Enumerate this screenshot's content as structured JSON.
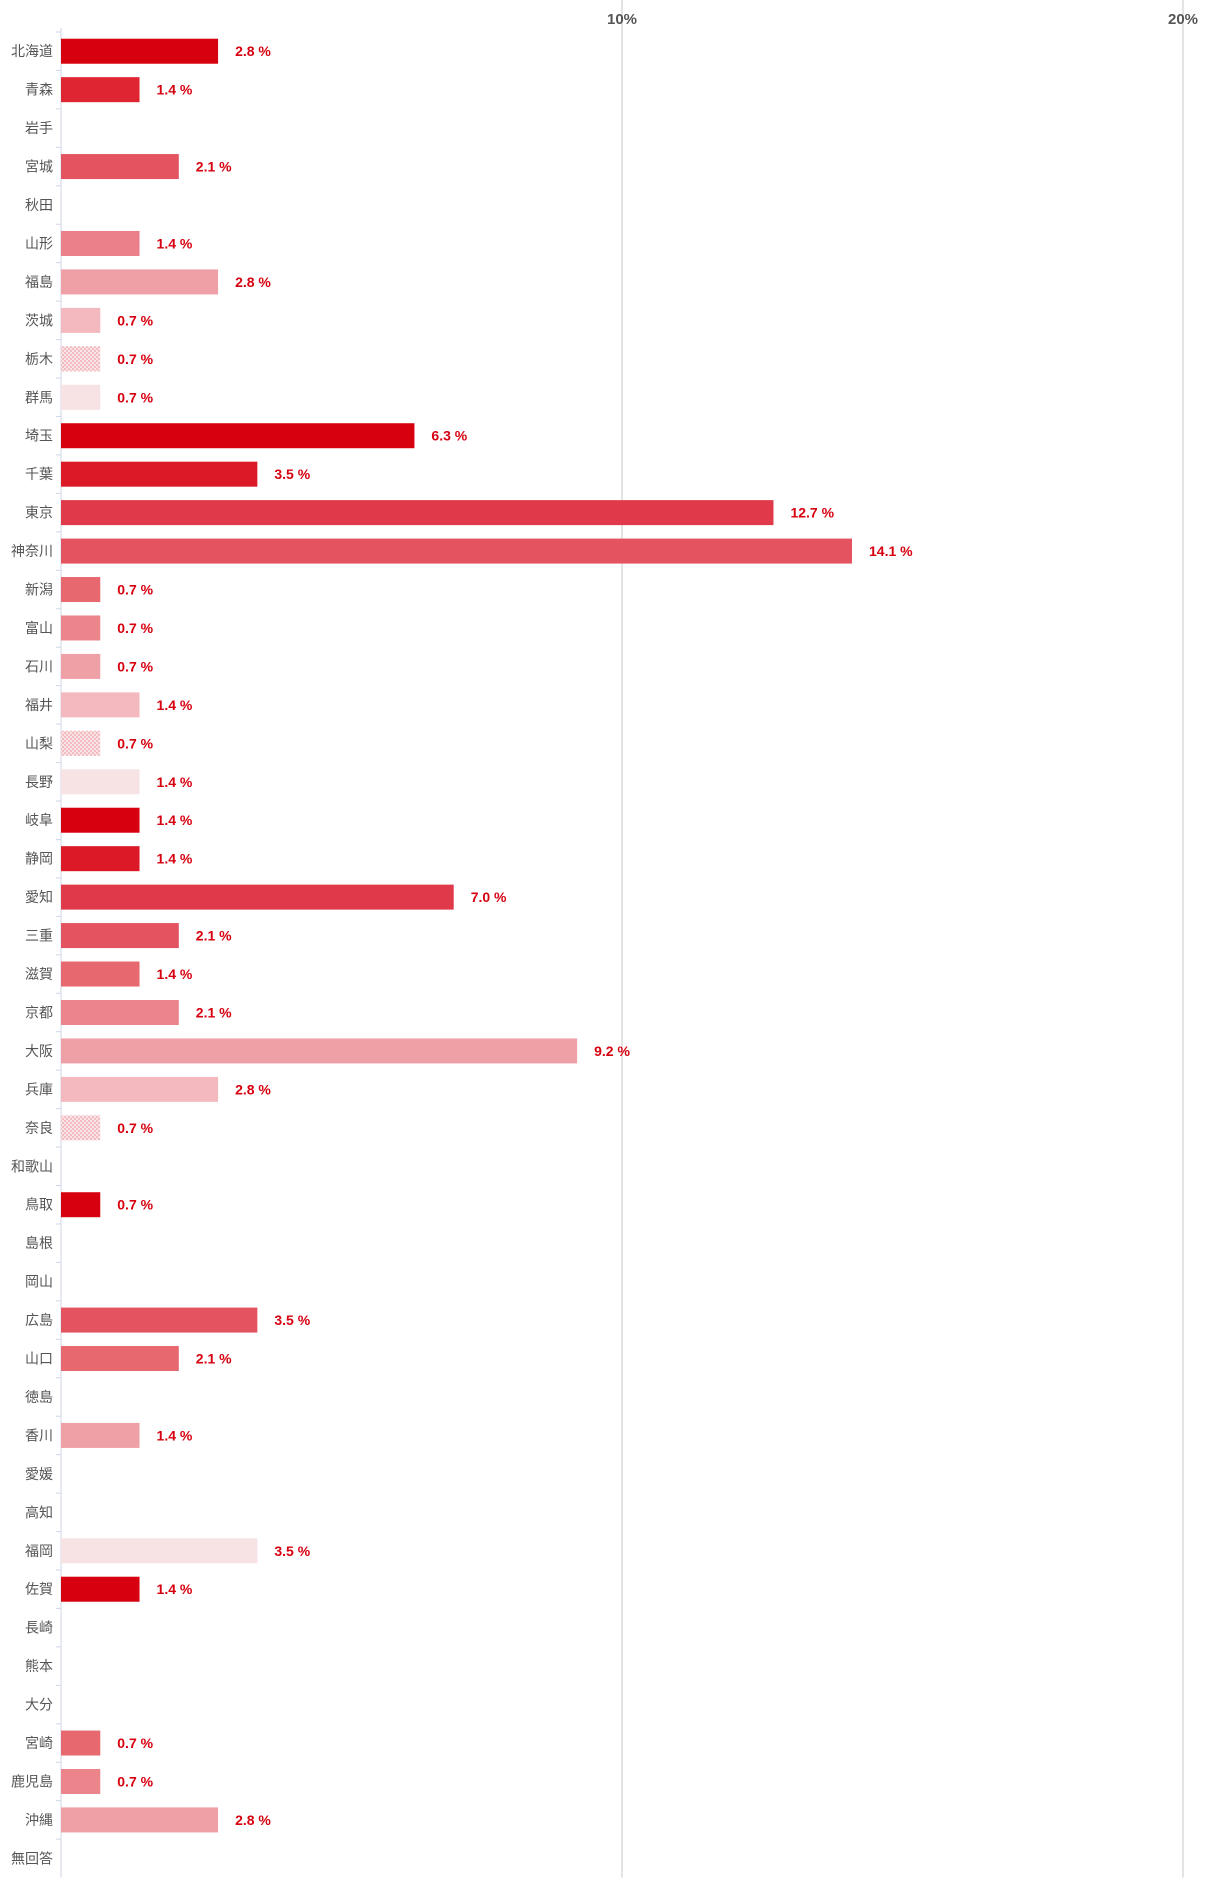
{
  "chart_data": {
    "type": "bar",
    "orientation": "horizontal",
    "xlim": [
      0,
      20
    ],
    "ticks": [
      {
        "value": 10,
        "label": "10%"
      },
      {
        "value": 20,
        "label": "20%"
      }
    ],
    "grid": true,
    "value_label_color": "#d7000f",
    "value_suffix": " %",
    "bars": [
      {
        "label": "北海道",
        "value": 2.8,
        "color": "#d7000f"
      },
      {
        "label": "青森",
        "value": 1.4,
        "color": "#df2532"
      },
      {
        "label": "岩手",
        "value": null
      },
      {
        "label": "宮城",
        "value": 2.1,
        "color": "#e45460"
      },
      {
        "label": "秋田",
        "value": null
      },
      {
        "label": "山形",
        "value": 1.4,
        "color": "#ec808a"
      },
      {
        "label": "福島",
        "value": 2.8,
        "color": "#efa0a6"
      },
      {
        "label": "茨城",
        "value": 0.7,
        "color": "#f4b9be"
      },
      {
        "label": "栃木",
        "value": 0.7,
        "color": "#f6c9cc",
        "pattern": "dots"
      },
      {
        "label": "群馬",
        "value": 0.7,
        "color": "#f7e2e4"
      },
      {
        "label": "埼玉",
        "value": 6.3,
        "color": "#d7000f"
      },
      {
        "label": "千葉",
        "value": 3.5,
        "color": "#dc1a27"
      },
      {
        "label": "東京",
        "value": 12.7,
        "color": "#e0394a"
      },
      {
        "label": "神奈川",
        "value": 14.1,
        "color": "#e45460"
      },
      {
        "label": "新潟",
        "value": 0.7,
        "color": "#e8686f"
      },
      {
        "label": "富山",
        "value": 0.7,
        "color": "#ec848c"
      },
      {
        "label": "石川",
        "value": 0.7,
        "color": "#efa0a6"
      },
      {
        "label": "福井",
        "value": 1.4,
        "color": "#f4b9be"
      },
      {
        "label": "山梨",
        "value": 0.7,
        "color": "#f6c9cc",
        "pattern": "dots"
      },
      {
        "label": "長野",
        "value": 1.4,
        "color": "#f7e2e4"
      },
      {
        "label": "岐阜",
        "value": 1.4,
        "color": "#d7000f"
      },
      {
        "label": "静岡",
        "value": 1.4,
        "color": "#dc1a27"
      },
      {
        "label": "愛知",
        "value": 7.0,
        "color": "#e0394a"
      },
      {
        "label": "三重",
        "value": 2.1,
        "color": "#e45460"
      },
      {
        "label": "滋賀",
        "value": 1.4,
        "color": "#e8686f"
      },
      {
        "label": "京都",
        "value": 2.1,
        "color": "#ec848c"
      },
      {
        "label": "大阪",
        "value": 9.2,
        "color": "#efa0a6"
      },
      {
        "label": "兵庫",
        "value": 2.8,
        "color": "#f4b9be"
      },
      {
        "label": "奈良",
        "value": 0.7,
        "color": "#f6c9cc",
        "pattern": "dots"
      },
      {
        "label": "和歌山",
        "value": null
      },
      {
        "label": "鳥取",
        "value": 0.7,
        "color": "#d7000f"
      },
      {
        "label": "島根",
        "value": null
      },
      {
        "label": "岡山",
        "value": null
      },
      {
        "label": "広島",
        "value": 3.5,
        "color": "#e45460"
      },
      {
        "label": "山口",
        "value": 2.1,
        "color": "#e8686f"
      },
      {
        "label": "徳島",
        "value": null
      },
      {
        "label": "香川",
        "value": 1.4,
        "color": "#efa0a6"
      },
      {
        "label": "愛媛",
        "value": null
      },
      {
        "label": "高知",
        "value": null
      },
      {
        "label": "福岡",
        "value": 3.5,
        "color": "#f7e2e4"
      },
      {
        "label": "佐賀",
        "value": 1.4,
        "color": "#d7000f"
      },
      {
        "label": "長崎",
        "value": null
      },
      {
        "label": "熊本",
        "value": null
      },
      {
        "label": "大分",
        "value": null
      },
      {
        "label": "宮崎",
        "value": 0.7,
        "color": "#e8686f"
      },
      {
        "label": "鹿児島",
        "value": 0.7,
        "color": "#ec848c"
      },
      {
        "label": "沖縄",
        "value": 2.8,
        "color": "#efa0a6"
      },
      {
        "label": "無回答",
        "value": null
      }
    ]
  }
}
